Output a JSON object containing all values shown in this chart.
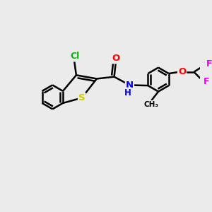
{
  "background_color": "#ebebeb",
  "bond_color": "#000000",
  "bond_width": 1.8,
  "atom_colors": {
    "Cl": "#00bb00",
    "S": "#cccc00",
    "O": "#ff0000",
    "N": "#0000ee",
    "H": "#0000ee",
    "O_ether": "#ff0000",
    "F": "#ee00ee",
    "C": "#000000"
  },
  "figsize": [
    3.0,
    3.0
  ],
  "dpi": 100
}
